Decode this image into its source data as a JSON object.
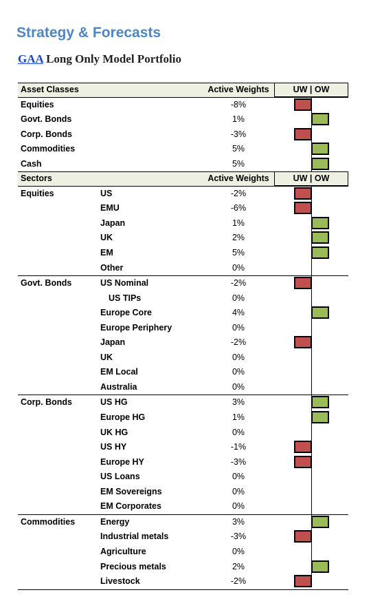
{
  "page": {
    "title": "Strategy & Forecasts",
    "subtitle_link": "GAA",
    "subtitle_rest": " Long Only Model Portfolio"
  },
  "colors": {
    "title": "#4f86c2",
    "link": "#1a46c8",
    "underweight": "#c0504d",
    "overweight": "#9bbb59",
    "header_bg": "#eef0e2"
  },
  "asset_header": {
    "col1": "Asset Classes",
    "col2": "Active Weights",
    "col3": "UW | OW"
  },
  "asset_rows": [
    {
      "group": "Equities",
      "weight": "-8%",
      "value": -8
    },
    {
      "group": "Govt. Bonds",
      "weight": "1%",
      "value": 1
    },
    {
      "group": "Corp. Bonds",
      "weight": "-3%",
      "value": -3
    },
    {
      "group": "Commodities",
      "weight": "5%",
      "value": 5
    },
    {
      "group": "Cash",
      "weight": "5%",
      "value": 5
    }
  ],
  "sector_header": {
    "col1": "Sectors",
    "col2": "Active Weights",
    "col3": "UW | OW"
  },
  "sector_groups": [
    {
      "group": "Equities",
      "rows": [
        {
          "name": "US",
          "weight": "-2%",
          "value": -2
        },
        {
          "name": "EMU",
          "weight": "-6%",
          "value": -6
        },
        {
          "name": "Japan",
          "weight": "1%",
          "value": 1
        },
        {
          "name": "UK",
          "weight": "2%",
          "value": 2
        },
        {
          "name": "EM",
          "weight": "5%",
          "value": 5
        },
        {
          "name": "Other",
          "weight": "0%",
          "value": 0
        }
      ]
    },
    {
      "group": "Govt. Bonds",
      "rows": [
        {
          "name": "US Nominal",
          "weight": "-2%",
          "value": -2
        },
        {
          "name": "US TIPs",
          "weight": "0%",
          "value": 0,
          "indent": true
        },
        {
          "name": "Europe Core",
          "weight": "4%",
          "value": 4
        },
        {
          "name": "Europe Periphery",
          "weight": "0%",
          "value": 0
        },
        {
          "name": "Japan",
          "weight": "-2%",
          "value": -2
        },
        {
          "name": "UK",
          "weight": "0%",
          "value": 0
        },
        {
          "name": "EM Local",
          "weight": "0%",
          "value": 0
        },
        {
          "name": "Australia",
          "weight": "0%",
          "value": 0
        }
      ]
    },
    {
      "group": "Corp. Bonds",
      "rows": [
        {
          "name": "US HG",
          "weight": "3%",
          "value": 3
        },
        {
          "name": "Europe HG",
          "weight": "1%",
          "value": 1
        },
        {
          "name": "UK HG",
          "weight": "0%",
          "value": 0
        },
        {
          "name": "US HY",
          "weight": "-1%",
          "value": -1
        },
        {
          "name": "Europe HY",
          "weight": "-3%",
          "value": -3
        },
        {
          "name": "US Loans",
          "weight": "0%",
          "value": 0
        },
        {
          "name": "EM Sovereigns",
          "weight": "0%",
          "value": 0
        },
        {
          "name": "EM Corporates",
          "weight": "0%",
          "value": 0
        }
      ]
    },
    {
      "group": "Commodities",
      "rows": [
        {
          "name": "Energy",
          "weight": "3%",
          "value": 3
        },
        {
          "name": "Industrial metals",
          "weight": "-3%",
          "value": -3
        },
        {
          "name": "Agriculture",
          "weight": "0%",
          "value": 0
        },
        {
          "name": "Precious metals",
          "weight": "2%",
          "value": 2
        },
        {
          "name": "Livestock",
          "weight": "-2%",
          "value": -2
        }
      ]
    }
  ]
}
